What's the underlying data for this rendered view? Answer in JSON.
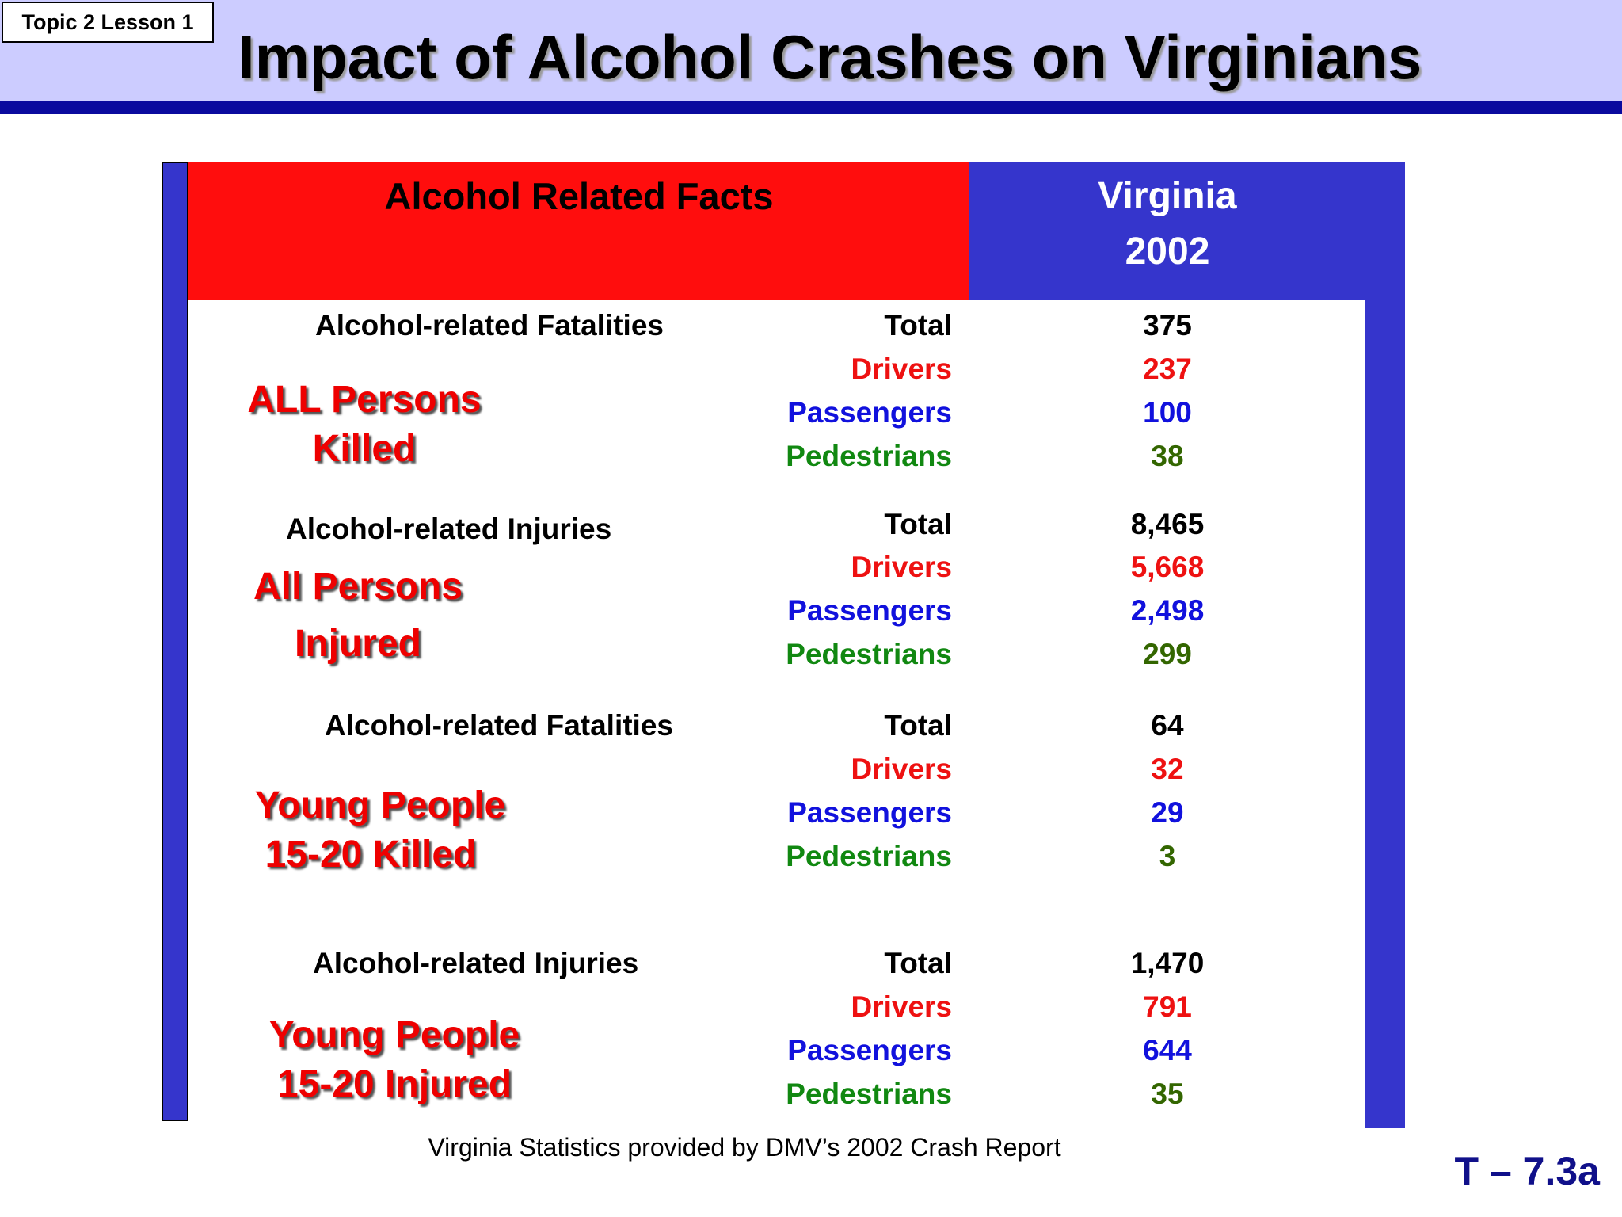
{
  "lesson_tag": "Topic 2 Lesson 1",
  "title": "Impact of Alcohol Crashes on Virginians",
  "table": {
    "header_left": "Alcohol Related Facts",
    "header_right_line1": "Virginia",
    "header_right_line2": "2002",
    "sections": [
      {
        "category": "Alcohol-related Fatalities",
        "label_line1": "ALL Persons",
        "label_line2": "Killed",
        "rows": [
          {
            "label": "Total",
            "value": "375"
          },
          {
            "label": "Drivers",
            "value": "237"
          },
          {
            "label": "Passengers",
            "value": "100"
          },
          {
            "label": "Pedestrians",
            "value": "38"
          }
        ]
      },
      {
        "category": "Alcohol-related Injuries",
        "label_line1": "All Persons",
        "label_line2": "Injured",
        "rows": [
          {
            "label": "Total",
            "value": "8,465"
          },
          {
            "label": "Drivers",
            "value": "5,668"
          },
          {
            "label": "Passengers",
            "value": "2,498"
          },
          {
            "label": "Pedestrians",
            "value": "299"
          }
        ]
      },
      {
        "category": "Alcohol-related Fatalities",
        "label_line1": "Young People",
        "label_line2": "15-20 Killed",
        "rows": [
          {
            "label": "Total",
            "value": "64"
          },
          {
            "label": "Drivers",
            "value": "32"
          },
          {
            "label": "Passengers",
            "value": "29"
          },
          {
            "label": "Pedestrians",
            "value": "3"
          }
        ]
      },
      {
        "category": "Alcohol-related Injuries",
        "label_line1": "Young People",
        "label_line2": "15-20 Injured",
        "rows": [
          {
            "label": "Total",
            "value": "1,470"
          },
          {
            "label": "Drivers",
            "value": "791"
          },
          {
            "label": "Passengers",
            "value": "644"
          },
          {
            "label": "Pedestrians",
            "value": "35"
          }
        ]
      }
    ]
  },
  "footnote": "Virginia Statistics provided by DMV’s 2002 Crash Report",
  "slide_id": "T – 7.3a",
  "colors": {
    "header_band": "#ccccff",
    "header_rule": "#0a0a9e",
    "red_header": "#ff0d0d",
    "blue_header": "#3535cc",
    "drivers": "#ee1111",
    "passengers": "#1111dd",
    "pedestrians": "#118811"
  }
}
